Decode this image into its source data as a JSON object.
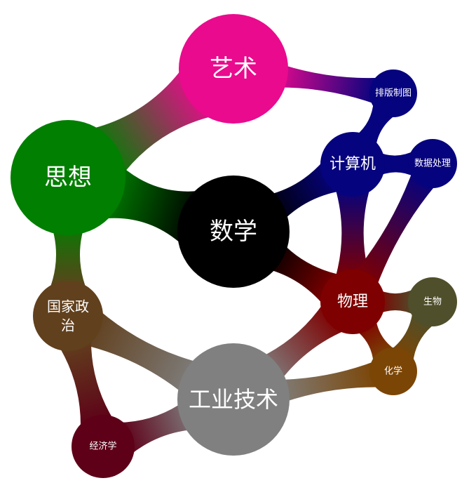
{
  "nodes": [
    {
      "id": "art",
      "label": "艺术",
      "color": "#ea0a8e"
    },
    {
      "id": "thought",
      "label": "思想",
      "color": "#007f00"
    },
    {
      "id": "math",
      "label": "数学",
      "color": "#000000"
    },
    {
      "id": "computer",
      "label": "计算机",
      "color": "#06037e"
    },
    {
      "id": "typeset",
      "label": "排版制图",
      "color": "#06037e"
    },
    {
      "id": "dataproc",
      "label": "数据处理",
      "color": "#06037e"
    },
    {
      "id": "physics",
      "label": "物理",
      "color": "#7f0000"
    },
    {
      "id": "biology",
      "label": "生物",
      "color": "#4f4f2b"
    },
    {
      "id": "chemistry",
      "label": "化学",
      "color": "#7b4505"
    },
    {
      "id": "politics",
      "label": "国家政治",
      "color": "#61401d"
    },
    {
      "id": "industry",
      "label": "工业技术",
      "color": "#808080"
    },
    {
      "id": "economics",
      "label": "经济学",
      "color": "#5e0018"
    }
  ],
  "edges": [
    [
      "art",
      "thought"
    ],
    [
      "art",
      "typeset"
    ],
    [
      "thought",
      "math"
    ],
    [
      "thought",
      "politics"
    ],
    [
      "math",
      "computer"
    ],
    [
      "math",
      "physics"
    ],
    [
      "computer",
      "typeset"
    ],
    [
      "computer",
      "dataproc"
    ],
    [
      "computer",
      "physics"
    ],
    [
      "dataproc",
      "physics"
    ],
    [
      "physics",
      "biology"
    ],
    [
      "physics",
      "chemistry"
    ],
    [
      "physics",
      "industry"
    ],
    [
      "biology",
      "chemistry"
    ],
    [
      "chemistry",
      "industry"
    ],
    [
      "politics",
      "industry"
    ],
    [
      "politics",
      "economics"
    ],
    [
      "industry",
      "economics"
    ]
  ]
}
